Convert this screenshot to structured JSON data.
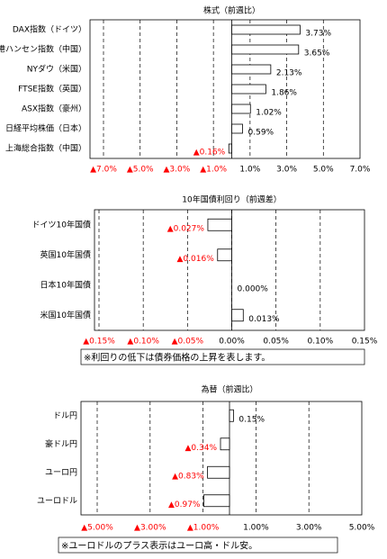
{
  "chart_data": [
    {
      "type": "bar",
      "title": "株式（前週比）",
      "categories": [
        "DAX指数（ドイツ）",
        "香港ハンセン指数（中国）",
        "NYダウ（米国）",
        "FTSE指数（英国）",
        "ASX指数（豪州）",
        "日経平均株価（日本）",
        "上海総合指数（中国）"
      ],
      "values": [
        3.73,
        3.65,
        2.13,
        1.86,
        1.02,
        0.59,
        -0.16
      ],
      "value_labels": [
        "3.73%",
        "3.65%",
        "2.13%",
        "1.86%",
        "1.02%",
        "0.59%",
        "▲0.16%"
      ],
      "xlim": [
        -7,
        7
      ],
      "xticks": [
        {
          "value": -7,
          "label": "▲7.0%"
        },
        {
          "value": -5,
          "label": "▲5.0%"
        },
        {
          "value": -3,
          "label": "▲3.0%"
        },
        {
          "value": -1,
          "label": "▲1.0%"
        },
        {
          "value": 1,
          "label": "1.0%"
        },
        {
          "value": 3,
          "label": "3.0%"
        },
        {
          "value": 5,
          "label": "5.0%"
        },
        {
          "value": 7,
          "label": "7.0%"
        }
      ],
      "color": "#ffffff",
      "edge_color": "#000000",
      "negative_label_color": "#ff0000",
      "grid": true
    },
    {
      "type": "bar",
      "title": "10年国債利回り（前週差）",
      "categories": [
        "ドイツ10年国債",
        "英国10年国債",
        "日本10年国債",
        "米国10年国債"
      ],
      "values": [
        -0.027,
        -0.016,
        0.0,
        0.013
      ],
      "value_labels": [
        "▲0.027%",
        "▲0.016%",
        "0.000%",
        "0.013%"
      ],
      "xlim": [
        -0.15,
        0.15
      ],
      "xticks": [
        {
          "value": -0.15,
          "label": "▲0.15%"
        },
        {
          "value": -0.1,
          "label": "▲0.10%"
        },
        {
          "value": -0.05,
          "label": "▲0.05%"
        },
        {
          "value": 0,
          "label": "0.00%"
        },
        {
          "value": 0.05,
          "label": "0.05%"
        },
        {
          "value": 0.1,
          "label": "0.10%"
        },
        {
          "value": 0.15,
          "label": "0.15%"
        }
      ],
      "color": "#ffffff",
      "edge_color": "#000000",
      "negative_label_color": "#ff0000",
      "grid": true,
      "note": "※利回りの低下は債券価格の上昇を表します。"
    },
    {
      "type": "bar",
      "title": "為替（前週比）",
      "categories": [
        "ドル円",
        "豪ドル円",
        "ユーロ円",
        "ユーロドル"
      ],
      "values": [
        0.15,
        -0.34,
        -0.83,
        -0.97
      ],
      "value_labels": [
        "0.15%",
        "▲0.34%",
        "▲0.83%",
        "▲0.97%"
      ],
      "xlim": [
        -5,
        5
      ],
      "xticks": [
        {
          "value": -5,
          "label": "▲5.00%"
        },
        {
          "value": -3,
          "label": "▲3.00%"
        },
        {
          "value": -1,
          "label": "▲1.00%"
        },
        {
          "value": 1,
          "label": "1.00%"
        },
        {
          "value": 3,
          "label": "3.00%"
        },
        {
          "value": 5,
          "label": "5.00%"
        }
      ],
      "color": "#ffffff",
      "edge_color": "#000000",
      "negative_label_color": "#ff0000",
      "grid": true,
      "note": "※ユーロドルのプラス表示はユーロ高・ドル安。"
    }
  ]
}
